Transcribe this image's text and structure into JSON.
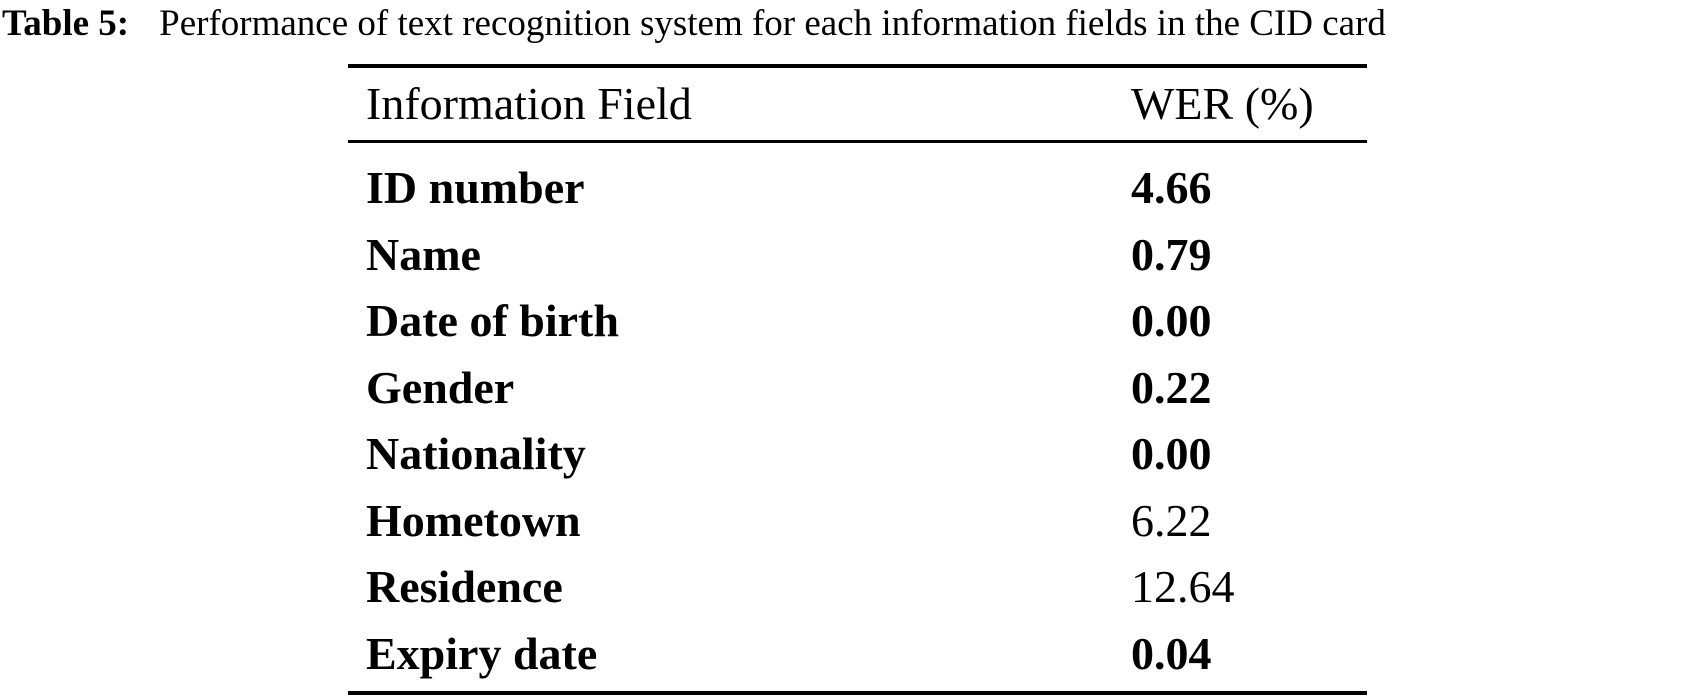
{
  "caption": {
    "label": "Table 5:",
    "text": "Performance of text recognition system for each information fields in the CID card"
  },
  "table": {
    "header": {
      "field": "Information Field",
      "wer": "WER (%)"
    },
    "rows": [
      {
        "field": "ID number",
        "wer": "4.66",
        "field_bold": true,
        "wer_bold": true
      },
      {
        "field": "Name",
        "wer": "0.79",
        "field_bold": true,
        "wer_bold": true
      },
      {
        "field": "Date of birth",
        "wer": "0.00",
        "field_bold": true,
        "wer_bold": true
      },
      {
        "field": "Gender",
        "wer": "0.22",
        "field_bold": true,
        "wer_bold": true
      },
      {
        "field": "Nationality",
        "wer": "0.00",
        "field_bold": true,
        "wer_bold": true
      },
      {
        "field": "Hometown",
        "wer": "6.22",
        "field_bold": true,
        "wer_bold": false
      },
      {
        "field": "Residence",
        "wer": "12.64",
        "field_bold": true,
        "wer_bold": false
      },
      {
        "field": "Expiry date",
        "wer": "0.04",
        "field_bold": true,
        "wer_bold": true
      }
    ]
  },
  "chart_data": {
    "type": "table",
    "title": "Table 5: Performance of text recognition system for each information fields in the CID card",
    "columns": [
      "Information Field",
      "WER (%)"
    ],
    "rows": [
      [
        "ID number",
        4.66
      ],
      [
        "Name",
        0.79
      ],
      [
        "Date of birth",
        0.0
      ],
      [
        "Gender",
        0.22
      ],
      [
        "Nationality",
        0.0
      ],
      [
        "Hometown",
        6.22
      ],
      [
        "Residence",
        12.64
      ],
      [
        "Expiry date",
        0.04
      ]
    ],
    "bold_rows": [
      "ID number",
      "Name",
      "Date of birth",
      "Gender",
      "Nationality",
      "Expiry date"
    ]
  },
  "colors": {
    "text": "#000000",
    "background": "#ffffff",
    "rule": "#000000"
  }
}
